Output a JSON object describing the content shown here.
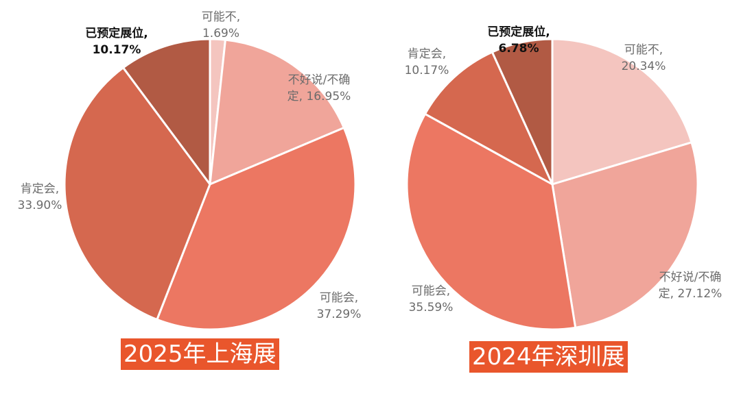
{
  "chart_data": [
    {
      "type": "pie",
      "title": "2025年上海展",
      "start_angle_deg": 0,
      "direction": "clockwise",
      "slices": [
        {
          "label": "可能不",
          "value": 1.69,
          "display": "1.69%",
          "color": "#f4c5bf"
        },
        {
          "label": "不好说/不确定",
          "value": 16.95,
          "display": "16.95%",
          "color": "#f0a59a"
        },
        {
          "label": "可能会",
          "value": 37.29,
          "display": "37.29%",
          "color": "#ec7762"
        },
        {
          "label": "肯定会",
          "value": 33.9,
          "display": "33.90%",
          "color": "#d5684f"
        },
        {
          "label": "已预定展位",
          "value": 10.17,
          "display": "10.17%",
          "color": "#b15a44",
          "emphasis": true
        }
      ]
    },
    {
      "type": "pie",
      "title": "2024年深圳展",
      "start_angle_deg": 0,
      "direction": "clockwise",
      "slices": [
        {
          "label": "可能不",
          "value": 20.34,
          "display": "20.34%",
          "color": "#f4c5bf"
        },
        {
          "label": "不好说/不确定",
          "value": 27.12,
          "display": "27.12%",
          "color": "#f0a59a"
        },
        {
          "label": "可能会",
          "value": 35.59,
          "display": "35.59%",
          "color": "#ec7762"
        },
        {
          "label": "肯定会",
          "value": 10.17,
          "display": "10.17%",
          "color": "#d5684f"
        },
        {
          "label": "已预定展位",
          "value": 6.78,
          "display": "6.78%",
          "color": "#b15a44",
          "emphasis": true
        }
      ]
    }
  ]
}
